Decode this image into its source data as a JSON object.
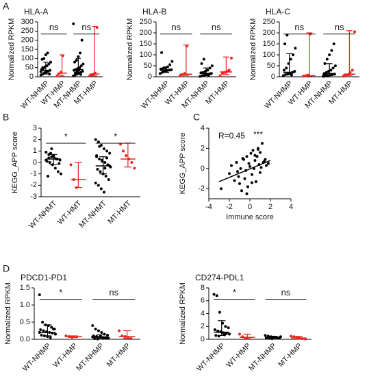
{
  "chart_data": [
    {
      "type": "dot",
      "panel": "A",
      "title": "HLA-A",
      "ylabel": "Normalized RPKM",
      "ylim": [
        0,
        300
      ],
      "yticks": [
        0,
        50,
        100,
        150,
        200,
        250,
        300
      ],
      "series": [
        {
          "name": "WT-NHMP",
          "color": "#000000",
          "values": [
            10,
            15,
            20,
            25,
            30,
            35,
            40,
            45,
            55,
            60,
            70,
            80,
            95,
            100,
            120,
            130,
            15,
            28,
            50,
            22
          ],
          "median": 35,
          "low": 15,
          "high": 80
        },
        {
          "name": "WT-HMP",
          "color": "#e8251f",
          "values": [
            5,
            15,
            25,
            115
          ],
          "median": 20,
          "low": 5,
          "high": 120
        },
        {
          "name": "MT-NHMP",
          "color": "#000000",
          "values": [
            5,
            10,
            15,
            20,
            25,
            30,
            35,
            40,
            45,
            50,
            60,
            70,
            80,
            90,
            110,
            130,
            200,
            290,
            20,
            28,
            38,
            12
          ],
          "median": 40,
          "low": 15,
          "high": 100
        },
        {
          "name": "MT-HMP",
          "color": "#e8251f",
          "values": [
            5,
            10,
            15,
            20,
            270
          ],
          "median": 15,
          "low": 5,
          "high": 275
        }
      ],
      "comparisons": [
        {
          "label": "ns",
          "groups": [
            0,
            1
          ]
        },
        {
          "label": "ns",
          "groups": [
            2,
            3
          ]
        }
      ]
    },
    {
      "type": "dot",
      "title": "HLA-B",
      "ylabel": "Normalized RPKM",
      "ylim": [
        0,
        250
      ],
      "yticks": [
        0,
        50,
        100,
        150,
        200,
        250
      ],
      "series": [
        {
          "name": "WT-NHMP",
          "color": "#000000",
          "values": [
            15,
            20,
            25,
            28,
            30,
            32,
            35,
            38,
            40,
            45,
            55,
            70,
            110,
            25,
            30
          ],
          "median": 30,
          "low": 20,
          "high": 45
        },
        {
          "name": "WT-HMP",
          "color": "#e8251f",
          "values": [
            5,
            10,
            15,
            140
          ],
          "median": 12,
          "low": 5,
          "high": 145
        },
        {
          "name": "MT-NHMP",
          "color": "#000000",
          "values": [
            2,
            5,
            8,
            10,
            12,
            15,
            18,
            20,
            25,
            30,
            40,
            50,
            60,
            80,
            10,
            5,
            15
          ],
          "median": 15,
          "low": 5,
          "high": 40
        },
        {
          "name": "MT-HMP",
          "color": "#e8251f",
          "values": [
            5,
            15,
            20,
            25,
            30,
            85
          ],
          "median": 22,
          "low": 10,
          "high": 90
        }
      ],
      "comparisons": [
        {
          "label": "ns",
          "groups": [
            0,
            1
          ]
        },
        {
          "label": "ns",
          "groups": [
            2,
            3
          ]
        }
      ]
    },
    {
      "type": "dot",
      "title": "HLA-C",
      "ylabel": "Normalized RPKM",
      "ylim": [
        0,
        250
      ],
      "yticks": [
        0,
        50,
        100,
        150,
        200,
        250
      ],
      "series": [
        {
          "name": "WT-NHMP",
          "color": "#000000",
          "values": [
            5,
            10,
            12,
            15,
            20,
            25,
            30,
            40,
            60,
            80,
            100,
            130,
            150,
            190,
            15,
            8
          ],
          "median": 20,
          "low": 10,
          "high": 105
        },
        {
          "name": "WT-HMP",
          "color": "#e8251f",
          "values": [
            3,
            5,
            8,
            195
          ],
          "median": 5,
          "low": 3,
          "high": 200
        },
        {
          "name": "MT-NHMP",
          "color": "#000000",
          "values": [
            2,
            4,
            6,
            8,
            10,
            12,
            15,
            20,
            25,
            30,
            40,
            50,
            60,
            80,
            100,
            120,
            150,
            5,
            8,
            3
          ],
          "median": 15,
          "low": 5,
          "high": 60
        },
        {
          "name": "MT-HMP",
          "color": "#e8251f",
          "values": [
            3,
            5,
            10,
            20,
            30,
            205
          ],
          "median": 12,
          "low": 5,
          "high": 210
        }
      ],
      "comparisons": [
        {
          "label": "ns",
          "groups": [
            0,
            1
          ]
        },
        {
          "label": "ns",
          "groups": [
            2,
            3
          ]
        }
      ]
    },
    {
      "type": "dot",
      "panel": "B",
      "ylabel": "KEGG_APP score",
      "ylim": [
        -3,
        3
      ],
      "yticks": [
        -3,
        -2,
        -1,
        0,
        1,
        2,
        3
      ],
      "series": [
        {
          "name": "WT-NHMT",
          "color": "#000000",
          "values": [
            0.9,
            0.7,
            0.5,
            0.4,
            0.3,
            0.2,
            0.1,
            0,
            -0.2,
            -0.5,
            -0.8,
            -1.0,
            -1.2,
            0.8,
            0.6,
            0.3,
            -0.1,
            0.2,
            0.4,
            1.2
          ],
          "median": 0.3,
          "low": -0.2,
          "high": 0.7
        },
        {
          "name": "WT-HMT",
          "color": "#e8251f",
          "values": [
            -0.2,
            -1.5,
            -2.2
          ],
          "median": -1.5,
          "low": -2.2,
          "high": 0
        },
        {
          "name": "MT-NHMT",
          "color": "#000000",
          "values": [
            2.0,
            1.8,
            1.5,
            1.2,
            1.0,
            0.8,
            0.5,
            0.3,
            0.1,
            0,
            -0.2,
            -0.4,
            -0.6,
            -0.8,
            -1.0,
            -1.2,
            -1.5,
            -1.8,
            -2.0,
            -2.3,
            -2.6,
            0.4,
            -0.3,
            0.6,
            1.4,
            0.2,
            -0.5
          ],
          "median": -0.3,
          "low": -1.0,
          "high": 0.5
        },
        {
          "name": "MT-HMT",
          "color": "#e8251f",
          "values": [
            1.6,
            1.0,
            0.6,
            0.3,
            0,
            -0.5
          ],
          "median": 0.3,
          "low": -0.4,
          "high": 1.7
        }
      ],
      "comparisons": [
        {
          "label": "*",
          "groups": [
            0,
            1
          ]
        },
        {
          "label": "*",
          "groups": [
            2,
            3
          ]
        }
      ]
    },
    {
      "type": "scatter",
      "panel": "C",
      "xlabel": "Immune score",
      "ylabel": "KEGG_APP score",
      "annotation": "R=0.45",
      "significance": "***",
      "xlim": [
        -4,
        4
      ],
      "xticks": [
        -4,
        -2,
        0,
        2,
        4
      ],
      "ylim": [
        -3,
        4
      ],
      "yticks": [
        -2,
        0,
        2,
        4
      ],
      "x": [
        -2.8,
        -2,
        -1.8,
        -1.5,
        -1.3,
        -1.2,
        -1,
        -0.9,
        -0.8,
        -0.6,
        -0.5,
        -0.4,
        -0.3,
        -0.2,
        -0.1,
        0,
        0.1,
        0.2,
        0.3,
        0.4,
        0.5,
        0.6,
        0.7,
        0.8,
        0.9,
        1,
        1.1,
        1.2,
        1.3,
        1.5,
        1.6,
        1.8,
        -1.1,
        -0.7,
        0.2,
        0.5,
        1,
        1.4,
        -0.3,
        0.8
      ],
      "y": [
        -2,
        -0.5,
        0.3,
        -1.2,
        0.6,
        -0.3,
        -1.5,
        0,
        -2.2,
        0.9,
        -1,
        -0.2,
        1.2,
        -1.8,
        0.5,
        0.2,
        1.5,
        -0.6,
        1.8,
        0,
        0.8,
        -1.3,
        1.2,
        2,
        0.4,
        1.6,
        0.1,
        2.5,
        0.6,
        0.9,
        0.3,
        0.5,
        -0.8,
        1,
        -1.4,
        1.3,
        -0.4,
        0.7,
        -2.5,
        1.9
      ],
      "color": "#000000",
      "fit": {
        "slope": 0.42,
        "intercept": -0.04,
        "x": [
          -3,
          2
        ]
      }
    },
    {
      "type": "dot",
      "panel": "D",
      "title": "PDCD1-PD1",
      "ylabel": "Normalized RPKM",
      "ylim": [
        0,
        1.5
      ],
      "yticks": [
        {
          "value": 0,
          "label": "0.0"
        },
        {
          "value": 0.5,
          "label": "0.5"
        },
        {
          "value": 1,
          "label": "1.0"
        },
        {
          "value": 1.5,
          "label": "1.5"
        }
      ],
      "series": [
        {
          "name": "WT-NHMP",
          "color": "#000000",
          "values": [
            1.3,
            0.5,
            0.42,
            0.4,
            0.35,
            0.3,
            0.28,
            0.25,
            0.22,
            0.2,
            0.18,
            0.15,
            0.12,
            0.1,
            0.08,
            0.05,
            0.3,
            0.2
          ],
          "median": 0.2,
          "low": 0.1,
          "high": 0.42
        },
        {
          "name": "WT-HMP",
          "color": "#e8251f",
          "values": [
            0.1,
            0.08,
            0.06
          ],
          "median": 0.08,
          "low": 0.05,
          "high": 0.1
        },
        {
          "name": "MT-NHMP",
          "color": "#000000",
          "values": [
            0.4,
            0.3,
            0.25,
            0.2,
            0.15,
            0.12,
            0.1,
            0.08,
            0.06,
            0.05,
            0.04,
            0.03,
            0.02,
            0.01,
            0.1,
            0.05,
            0.03,
            0.07
          ],
          "median": 0.07,
          "low": 0.03,
          "high": 0.13
        },
        {
          "name": "MT-HMP",
          "color": "#e8251f",
          "values": [
            0.25,
            0.1,
            0.08,
            0.05,
            0.02
          ],
          "median": 0.08,
          "low": 0.03,
          "high": 0.25
        }
      ],
      "comparisons": [
        {
          "label": "*",
          "groups": [
            0,
            1
          ]
        },
        {
          "label": "ns",
          "groups": [
            2,
            3
          ]
        }
      ]
    },
    {
      "type": "dot",
      "title": "CD274-PDL1",
      "ylabel": "Normalized RPKM",
      "ylim": [
        0,
        8
      ],
      "yticks": [
        0,
        2,
        4,
        6,
        8
      ],
      "series": [
        {
          "name": "WT-NHMP",
          "color": "#000000",
          "values": [
            7,
            6.8,
            4.2,
            2.5,
            2,
            1.8,
            1.5,
            1.3,
            1.2,
            1,
            0.9,
            0.8,
            0.6,
            0.5,
            1.1,
            0.7
          ],
          "median": 1.1,
          "low": 0.6,
          "high": 2.9
        },
        {
          "name": "WT-HMP",
          "color": "#e8251f",
          "values": [
            0.8,
            0.4,
            0.2
          ],
          "median": 0.3,
          "low": 0.1,
          "high": 0.8
        },
        {
          "name": "MT-NHMP",
          "color": "#000000",
          "values": [
            0.6,
            0.5,
            0.4,
            0.35,
            0.3,
            0.25,
            0.2,
            0.15,
            0.1,
            0.3,
            0.2,
            0.4
          ],
          "median": 0.3,
          "low": 0.15,
          "high": 0.45
        },
        {
          "name": "MT-HMP",
          "color": "#e8251f",
          "values": [
            0.5,
            0.4,
            0.3,
            0.2,
            0.1,
            0.05
          ],
          "median": 0.2,
          "low": 0.05,
          "high": 0.45
        }
      ],
      "comparisons": [
        {
          "label": "*",
          "groups": [
            0,
            1
          ]
        },
        {
          "label": "ns",
          "groups": [
            2,
            3
          ]
        }
      ]
    }
  ]
}
